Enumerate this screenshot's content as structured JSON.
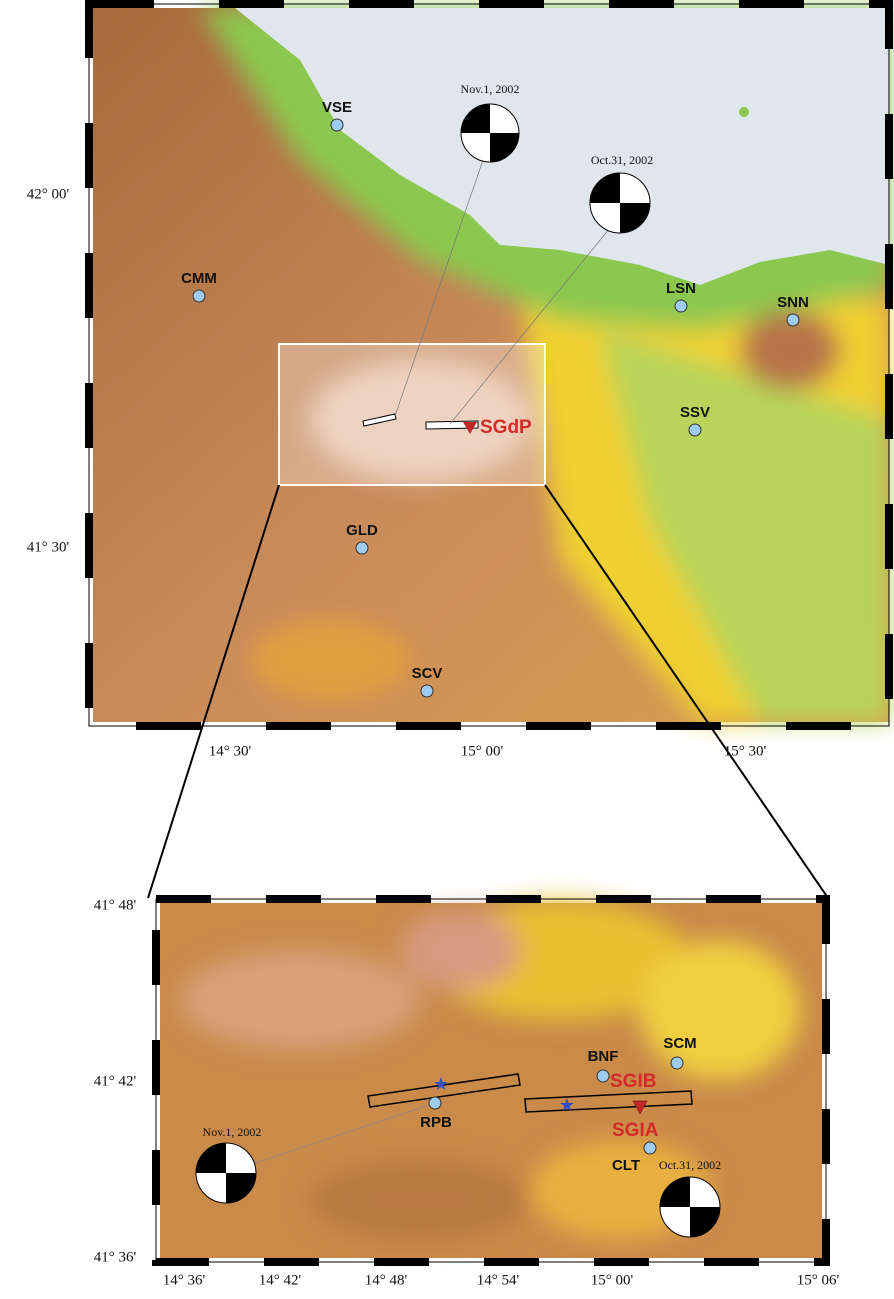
{
  "top_map": {
    "lat_labels": [
      "42° 00'",
      "41° 30'"
    ],
    "lon_labels": [
      "14° 30'",
      "15° 00'",
      "15° 30'"
    ],
    "stations": [
      "VSE",
      "CMM",
      "LSN",
      "SNN",
      "SSV",
      "GLD",
      "SCV"
    ],
    "site": "SGdP",
    "events": [
      "Nov.1, 2002",
      "Oct.31, 2002"
    ]
  },
  "inset_map": {
    "lat_labels": [
      "41° 48'",
      "41° 42'",
      "41° 36'"
    ],
    "lon_labels": [
      "14° 36'",
      "14° 42'",
      "14° 48'",
      "14° 54'",
      "15° 00'",
      "15° 06'"
    ],
    "stations": [
      "BNF",
      "SCM",
      "RPB",
      "CLT"
    ],
    "sites": [
      "SGIB",
      "SGIA"
    ],
    "events": [
      "Nov.1, 2002",
      "Oct.31, 2002"
    ]
  }
}
